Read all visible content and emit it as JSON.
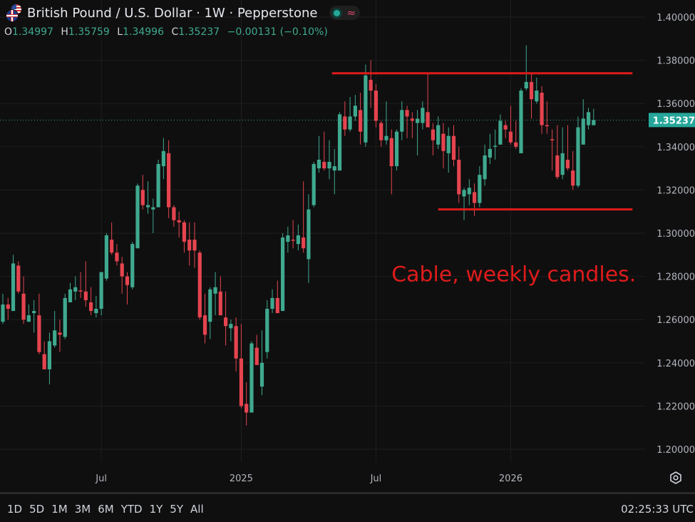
{
  "header": {
    "symbol_icon": "gbp-usd-flags-icon",
    "title": "British Pound / U.S. Dollar · 1W · Pepperstone",
    "status_icon": "market-open-dot-icon",
    "indicator_icon": "wave-icon",
    "ohlc": {
      "o_label": "O",
      "o": "1.34997",
      "h_label": "H",
      "h": "1.35759",
      "l_label": "L",
      "l": "1.34996",
      "c_label": "C",
      "c": "1.35237",
      "change": "−0.00131 (−0.10%)"
    }
  },
  "colors": {
    "background": "#0f0f0f",
    "up": "#3fa98f",
    "down": "#e5444f",
    "annotation": "#e01b1b",
    "grid": "#1f1f1f"
  },
  "chart_data": {
    "type": "candlestick",
    "title": "British Pound / U.S. Dollar · 1W · Pepperstone",
    "ylim": [
      1.19,
      1.405
    ],
    "y_ticks": [
      "1.40000",
      "1.38000",
      "1.36000",
      "1.34000",
      "1.32000",
      "1.30000",
      "1.28000",
      "1.26000",
      "1.24000",
      "1.22000",
      "1.20000"
    ],
    "x_ticks": [
      {
        "label": "Jul",
        "index": 19
      },
      {
        "label": "2025",
        "index": 46
      },
      {
        "label": "Jul",
        "index": 72
      },
      {
        "label": "2026",
        "index": 98
      }
    ],
    "last_price": "1.35237",
    "grid": true,
    "candles": [
      [
        1.259,
        1.272,
        1.258,
        1.267
      ],
      [
        1.267,
        1.27,
        1.26,
        1.265
      ],
      [
        1.264,
        1.29,
        1.264,
        1.286
      ],
      [
        1.285,
        1.287,
        1.272,
        1.273
      ],
      [
        1.272,
        1.28,
        1.258,
        1.26
      ],
      [
        1.259,
        1.267,
        1.259,
        1.262
      ],
      [
        1.263,
        1.269,
        1.254,
        1.264
      ],
      [
        1.262,
        1.272,
        1.244,
        1.245
      ],
      [
        1.244,
        1.25,
        1.237,
        1.237
      ],
      [
        1.237,
        1.254,
        1.23,
        1.25
      ],
      [
        1.248,
        1.264,
        1.247,
        1.255
      ],
      [
        1.254,
        1.26,
        1.245,
        1.253
      ],
      [
        1.252,
        1.272,
        1.251,
        1.27
      ],
      [
        1.268,
        1.277,
        1.268,
        1.274
      ],
      [
        1.273,
        1.28,
        1.269,
        1.275
      ],
      [
        1.2735,
        1.282,
        1.27,
        1.273
      ],
      [
        1.273,
        1.287,
        1.266,
        1.269
      ],
      [
        1.268,
        1.275,
        1.262,
        1.264
      ],
      [
        1.263,
        1.271,
        1.261,
        1.265
      ],
      [
        1.265,
        1.282,
        1.262,
        1.282
      ],
      [
        1.279,
        1.3,
        1.278,
        1.299
      ],
      [
        1.297,
        1.305,
        1.29,
        1.291
      ],
      [
        1.291,
        1.295,
        1.285,
        1.287
      ],
      [
        1.286,
        1.289,
        1.272,
        1.28
      ],
      [
        1.28,
        1.282,
        1.267,
        1.276
      ],
      [
        1.275,
        1.296,
        1.274,
        1.295
      ],
      [
        1.293,
        1.323,
        1.293,
        1.322
      ],
      [
        1.32,
        1.327,
        1.311,
        1.313
      ],
      [
        1.312,
        1.324,
        1.309,
        1.313
      ],
      [
        1.311,
        1.316,
        1.3,
        1.312
      ],
      [
        1.312,
        1.334,
        1.312,
        1.332
      ],
      [
        1.331,
        1.344,
        1.325,
        1.338
      ],
      [
        1.337,
        1.343,
        1.307,
        1.312
      ],
      [
        1.312,
        1.313,
        1.303,
        1.306
      ],
      [
        1.306,
        1.31,
        1.298,
        1.305
      ],
      [
        1.305,
        1.306,
        1.291,
        1.296
      ],
      [
        1.297,
        1.305,
        1.285,
        1.292
      ],
      [
        1.297,
        1.305,
        1.284,
        1.292
      ],
      [
        1.291,
        1.292,
        1.26,
        1.261
      ],
      [
        1.262,
        1.272,
        1.249,
        1.253
      ],
      [
        1.259,
        1.275,
        1.251,
        1.274
      ],
      [
        1.272,
        1.282,
        1.262,
        1.275
      ],
      [
        1.273,
        1.28,
        1.262,
        1.262
      ],
      [
        1.261,
        1.273,
        1.248,
        1.257
      ],
      [
        1.256,
        1.26,
        1.25,
        1.258
      ],
      [
        1.257,
        1.261,
        1.236,
        1.242
      ],
      [
        1.242,
        1.258,
        1.219,
        1.22
      ],
      [
        1.221,
        1.231,
        1.211,
        1.217
      ],
      [
        1.217,
        1.25,
        1.217,
        1.249
      ],
      [
        1.247,
        1.253,
        1.239,
        1.239
      ],
      [
        1.229,
        1.255,
        1.225,
        1.24
      ],
      [
        1.245,
        1.269,
        1.242,
        1.265
      ],
      [
        1.265,
        1.274,
        1.263,
        1.27
      ],
      [
        1.27,
        1.278,
        1.263,
        1.263
      ],
      [
        1.264,
        1.3,
        1.264,
        1.298
      ],
      [
        1.296,
        1.303,
        1.291,
        1.299
      ],
      [
        1.297,
        1.306,
        1.293,
        1.2965
      ],
      [
        1.295,
        1.304,
        1.292,
        1.299
      ],
      [
        1.298,
        1.324,
        1.291,
        1.293
      ],
      [
        1.288,
        1.318,
        1.277,
        1.311
      ],
      [
        1.313,
        1.333,
        1.312,
        1.332
      ],
      [
        1.33,
        1.345,
        1.328,
        1.334
      ],
      [
        1.333,
        1.347,
        1.329,
        1.33
      ],
      [
        1.33,
        1.343,
        1.325,
        1.333
      ],
      [
        1.329,
        1.339,
        1.318,
        1.331
      ],
      [
        1.329,
        1.356,
        1.329,
        1.355
      ],
      [
        1.354,
        1.361,
        1.345,
        1.348
      ],
      [
        1.348,
        1.363,
        1.347,
        1.354
      ],
      [
        1.354,
        1.364,
        1.352,
        1.359
      ],
      [
        1.357,
        1.365,
        1.341,
        1.347
      ],
      [
        1.342,
        1.378,
        1.34,
        1.373
      ],
      [
        1.371,
        1.38,
        1.358,
        1.366
      ],
      [
        1.366,
        1.369,
        1.349,
        1.352
      ],
      [
        1.351,
        1.352,
        1.34,
        1.343
      ],
      [
        1.343,
        1.361,
        1.341,
        1.345
      ],
      [
        1.344,
        1.348,
        1.318,
        1.331
      ],
      [
        1.331,
        1.348,
        1.329,
        1.347
      ],
      [
        1.347,
        1.361,
        1.343,
        1.357
      ],
      [
        1.357,
        1.359,
        1.344,
        1.354
      ],
      [
        1.353,
        1.356,
        1.344,
        1.352
      ],
      [
        1.351,
        1.357,
        1.336,
        1.353
      ],
      [
        1.351,
        1.361,
        1.348,
        1.358
      ],
      [
        1.356,
        1.374,
        1.349,
        1.349
      ],
      [
        1.348,
        1.351,
        1.336,
        1.343
      ],
      [
        1.341,
        1.354,
        1.339,
        1.35
      ],
      [
        1.346,
        1.351,
        1.33,
        1.338
      ],
      [
        1.337,
        1.349,
        1.328,
        1.345
      ],
      [
        1.345,
        1.35,
        1.331,
        1.334
      ],
      [
        1.334,
        1.34,
        1.314,
        1.318
      ],
      [
        1.317,
        1.321,
        1.306,
        1.32
      ],
      [
        1.318,
        1.325,
        1.313,
        1.321
      ],
      [
        1.319,
        1.323,
        1.308,
        1.314
      ],
      [
        1.314,
        1.331,
        1.312,
        1.327
      ],
      [
        1.325,
        1.341,
        1.322,
        1.336
      ],
      [
        1.335,
        1.346,
        1.332,
        1.339
      ],
      [
        1.34,
        1.348,
        1.334,
        1.3405
      ],
      [
        1.341,
        1.355,
        1.341,
        1.352
      ],
      [
        1.35,
        1.352,
        1.344,
        1.348
      ],
      [
        1.347,
        1.359,
        1.341,
        1.342
      ],
      [
        1.342,
        1.352,
        1.339,
        1.34
      ],
      [
        1.337,
        1.367,
        1.337,
        1.366
      ],
      [
        1.367,
        1.387,
        1.366,
        1.37
      ],
      [
        1.37,
        1.374,
        1.353,
        1.362
      ],
      [
        1.361,
        1.372,
        1.36,
        1.366
      ],
      [
        1.365,
        1.368,
        1.346,
        1.35
      ],
      [
        1.35,
        1.361,
        1.346,
        1.3495
      ],
      [
        1.3435,
        1.348,
        1.329,
        1.343
      ],
      [
        1.336,
        1.35,
        1.325,
        1.326
      ],
      [
        1.327,
        1.349,
        1.325,
        1.337
      ],
      [
        1.334,
        1.35,
        1.329,
        1.33
      ],
      [
        1.329,
        1.338,
        1.32,
        1.322
      ],
      [
        1.322,
        1.354,
        1.321,
        1.349
      ],
      [
        1.341,
        1.362,
        1.341,
        1.353
      ],
      [
        1.35,
        1.358,
        1.348,
        1.356
      ],
      [
        1.34997,
        1.35759,
        1.34996,
        1.35237
      ]
    ],
    "annotations": {
      "resistance": {
        "price": 1.374,
        "from_index": 63.5,
        "to_index": 121.5
      },
      "support": {
        "price": 1.311,
        "from_index": 84,
        "to_index": 121.5
      },
      "text": {
        "label": "Cable, weekly candles.",
        "price": 1.281,
        "index": 75
      }
    }
  },
  "footer": {
    "periods": [
      "1D",
      "5D",
      "1M",
      "3M",
      "6M",
      "YTD",
      "1Y",
      "5Y",
      "All"
    ],
    "clock": "02:25:33 UTC",
    "settings_icon": "settings-hexagon-icon"
  }
}
